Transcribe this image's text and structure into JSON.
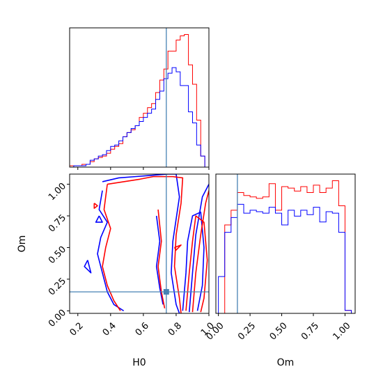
{
  "chart_data": [
    {
      "type": "histogram",
      "name": "H0 marginal",
      "xlim": [
        0.15,
        1.0
      ],
      "truth": 0.74,
      "colors": {
        "red": "#ff0000",
        "blue": "#0000ff",
        "truth": "#4682b4"
      },
      "series": [
        {
          "color": "red",
          "edges": [
            0.15,
            0.175,
            0.2,
            0.225,
            0.25,
            0.275,
            0.3,
            0.325,
            0.35,
            0.375,
            0.4,
            0.425,
            0.45,
            0.475,
            0.5,
            0.525,
            0.55,
            0.575,
            0.6,
            0.625,
            0.65,
            0.675,
            0.7,
            0.725,
            0.75,
            0.775,
            0.8,
            0.825,
            0.85,
            0.875,
            0.9,
            0.925,
            0.95,
            0.975,
            1.0
          ],
          "counts": [
            0.01,
            0.01,
            0.01,
            0.02,
            0.02,
            0.04,
            0.06,
            0.07,
            0.08,
            0.1,
            0.13,
            0.15,
            0.17,
            0.22,
            0.25,
            0.27,
            0.3,
            0.36,
            0.39,
            0.43,
            0.46,
            0.54,
            0.63,
            0.71,
            0.84,
            0.84,
            0.92,
            0.95,
            0.96,
            0.74,
            0.6,
            0.34,
            0.08,
            0.0
          ]
        },
        {
          "color": "blue",
          "edges": [
            0.15,
            0.175,
            0.2,
            0.225,
            0.25,
            0.275,
            0.3,
            0.325,
            0.35,
            0.375,
            0.4,
            0.425,
            0.45,
            0.475,
            0.5,
            0.525,
            0.55,
            0.575,
            0.6,
            0.625,
            0.65,
            0.675,
            0.7,
            0.725,
            0.75,
            0.775,
            0.8,
            0.825,
            0.85,
            0.875,
            0.9,
            0.925,
            0.95,
            0.975,
            1.0
          ],
          "counts": [
            0.0,
            0.01,
            0.01,
            0.01,
            0.02,
            0.05,
            0.06,
            0.08,
            0.09,
            0.12,
            0.15,
            0.16,
            0.19,
            0.22,
            0.25,
            0.28,
            0.3,
            0.33,
            0.36,
            0.39,
            0.42,
            0.49,
            0.55,
            0.64,
            0.68,
            0.72,
            0.69,
            0.59,
            0.59,
            0.4,
            0.32,
            0.16,
            0.08,
            0.0
          ]
        }
      ]
    },
    {
      "type": "contour",
      "name": "H0 vs Om",
      "xlabel": "H0",
      "ylabel": "Om",
      "xlim": [
        0.15,
        1.0
      ],
      "ylim": [
        -0.02,
        1.08
      ],
      "xticks": [
        "0.2",
        "0.4",
        "0.6",
        "0.8",
        "1.0"
      ],
      "yticks": [
        "0.00",
        "0.25",
        "0.50",
        "0.75",
        "1.00"
      ],
      "truth": {
        "x": 0.74,
        "y": 0.15
      },
      "contours": [
        {
          "color": "blue",
          "points": [
            [
              0.35,
              1.02
            ],
            [
              0.45,
              1.05
            ],
            [
              0.55,
              1.06
            ],
            [
              0.65,
              1.07
            ],
            [
              0.75,
              1.08
            ],
            [
              0.8,
              1.08
            ],
            [
              0.82,
              0.9
            ],
            [
              0.78,
              0.55
            ],
            [
              0.77,
              0.3
            ],
            [
              0.8,
              0.05
            ],
            [
              0.82,
              -0.02
            ]
          ]
        },
        {
          "color": "blue",
          "points": [
            [
              0.35,
              0.95
            ],
            [
              0.33,
              0.8
            ],
            [
              0.38,
              0.7
            ],
            [
              0.34,
              0.58
            ],
            [
              0.32,
              0.45
            ],
            [
              0.35,
              0.3
            ],
            [
              0.38,
              0.15
            ],
            [
              0.42,
              0.05
            ],
            [
              0.48,
              0.0
            ]
          ]
        },
        {
          "color": "blue",
          "points": [
            [
              0.88,
              -0.01
            ],
            [
              0.9,
              0.3
            ],
            [
              0.92,
              0.6
            ],
            [
              0.96,
              0.9
            ],
            [
              1.0,
              1.0
            ]
          ]
        },
        {
          "color": "blue",
          "points": [
            [
              0.84,
              0.0
            ],
            [
              0.86,
              0.3
            ],
            [
              0.87,
              0.55
            ],
            [
              0.9,
              0.75
            ],
            [
              0.95,
              0.78
            ],
            [
              0.97,
              0.5
            ],
            [
              0.96,
              0.2
            ],
            [
              0.93,
              0.0
            ]
          ]
        },
        {
          "color": "blue",
          "points": [
            [
              0.68,
              0.75
            ],
            [
              0.7,
              0.55
            ],
            [
              0.68,
              0.35
            ],
            [
              0.7,
              0.18
            ],
            [
              0.72,
              0.05
            ]
          ]
        },
        {
          "color": "blue",
          "points": [
            [
              0.26,
              0.4
            ],
            [
              0.28,
              0.3
            ],
            [
              0.24,
              0.35
            ],
            [
              0.26,
              0.4
            ]
          ]
        },
        {
          "color": "blue",
          "points": [
            [
              0.33,
              0.75
            ],
            [
              0.35,
              0.7
            ],
            [
              0.31,
              0.7
            ],
            [
              0.33,
              0.75
            ]
          ]
        },
        {
          "color": "red",
          "points": [
            [
              0.38,
              1.0
            ],
            [
              0.48,
              1.02
            ],
            [
              0.58,
              1.04
            ],
            [
              0.66,
              1.06
            ],
            [
              0.78,
              1.06
            ],
            [
              0.84,
              1.05
            ],
            [
              0.83,
              0.85
            ],
            [
              0.8,
              0.6
            ],
            [
              0.79,
              0.35
            ],
            [
              0.82,
              0.1
            ],
            [
              0.83,
              -0.02
            ]
          ]
        },
        {
          "color": "red",
          "points": [
            [
              0.38,
              1.0
            ],
            [
              0.36,
              0.8
            ],
            [
              0.4,
              0.65
            ],
            [
              0.37,
              0.5
            ],
            [
              0.35,
              0.35
            ],
            [
              0.38,
              0.2
            ],
            [
              0.42,
              0.08
            ],
            [
              0.46,
              0.0
            ]
          ]
        },
        {
          "color": "red",
          "points": [
            [
              0.9,
              -0.01
            ],
            [
              0.92,
              0.3
            ],
            [
              0.95,
              0.6
            ],
            [
              0.98,
              0.85
            ],
            [
              1.0,
              0.95
            ]
          ]
        },
        {
          "color": "red",
          "points": [
            [
              0.86,
              0.0
            ],
            [
              0.88,
              0.3
            ],
            [
              0.9,
              0.55
            ],
            [
              0.92,
              0.75
            ],
            [
              0.97,
              0.7
            ],
            [
              0.99,
              0.4
            ],
            [
              0.97,
              0.1
            ],
            [
              0.95,
              -0.01
            ]
          ]
        },
        {
          "color": "red",
          "points": [
            [
              0.69,
              0.8
            ],
            [
              0.71,
              0.55
            ],
            [
              0.69,
              0.35
            ],
            [
              0.71,
              0.15
            ],
            [
              0.73,
              0.02
            ]
          ]
        },
        {
          "color": "red",
          "points": [
            [
              0.3,
              0.85
            ],
            [
              0.32,
              0.83
            ],
            [
              0.3,
              0.81
            ],
            [
              0.3,
              0.85
            ]
          ]
        },
        {
          "color": "red",
          "points": [
            [
              0.79,
              0.5
            ],
            [
              0.83,
              0.52
            ],
            [
              0.8,
              0.48
            ],
            [
              0.79,
              0.5
            ]
          ]
        }
      ]
    },
    {
      "type": "histogram",
      "name": "Om marginal",
      "xlabel": "Om",
      "xlim": [
        -0.02,
        1.08
      ],
      "xticks": [
        "0.00",
        "0.25",
        "0.50",
        "0.75",
        "1.00"
      ],
      "truth": 0.15,
      "series": [
        {
          "color": "red",
          "edges": [
            0.0,
            0.05,
            0.1,
            0.15,
            0.2,
            0.25,
            0.3,
            0.35,
            0.4,
            0.45,
            0.5,
            0.55,
            0.6,
            0.65,
            0.7,
            0.75,
            0.8,
            0.85,
            0.9,
            0.95,
            1.0,
            1.05
          ],
          "counts": [
            0.0,
            0.6,
            0.7,
            0.82,
            0.8,
            0.79,
            0.78,
            0.79,
            0.88,
            0.7,
            0.86,
            0.85,
            0.83,
            0.86,
            0.82,
            0.87,
            0.82,
            0.85,
            0.9,
            0.73,
            0.02
          ]
        },
        {
          "color": "blue",
          "edges": [
            0.0,
            0.05,
            0.1,
            0.15,
            0.2,
            0.25,
            0.3,
            0.35,
            0.4,
            0.45,
            0.5,
            0.55,
            0.6,
            0.65,
            0.7,
            0.75,
            0.8,
            0.85,
            0.9,
            0.95,
            1.0,
            1.05
          ],
          "counts": [
            0.25,
            0.55,
            0.65,
            0.74,
            0.68,
            0.7,
            0.69,
            0.68,
            0.72,
            0.68,
            0.6,
            0.7,
            0.66,
            0.7,
            0.67,
            0.72,
            0.62,
            0.69,
            0.68,
            0.55,
            0.02
          ]
        }
      ]
    }
  ]
}
